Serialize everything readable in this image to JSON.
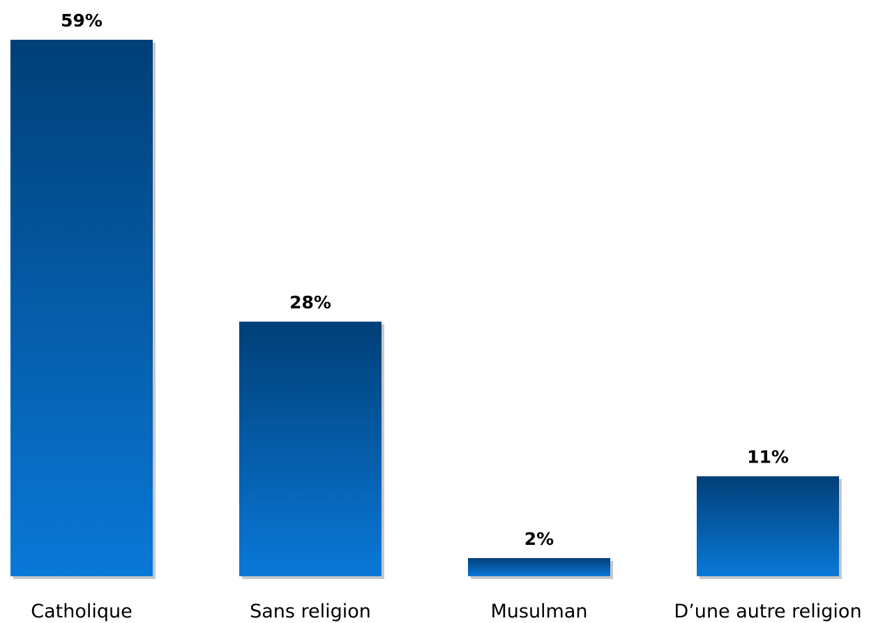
{
  "chart_data": {
    "type": "bar",
    "categories": [
      "Catholique",
      "Sans religion",
      "Musulman",
      "D’une autre religion"
    ],
    "values": [
      59,
      28,
      2,
      11
    ],
    "value_labels": [
      "59%",
      "28%",
      "2%",
      "11%"
    ],
    "title": "",
    "xlabel": "",
    "ylabel": "",
    "ylim": [
      0,
      59
    ],
    "grid": false,
    "legend": "none",
    "colors": {
      "bar_top": "#003f77",
      "bar_bottom": "#0a78d8",
      "shadow": "#c8c8c8"
    }
  }
}
